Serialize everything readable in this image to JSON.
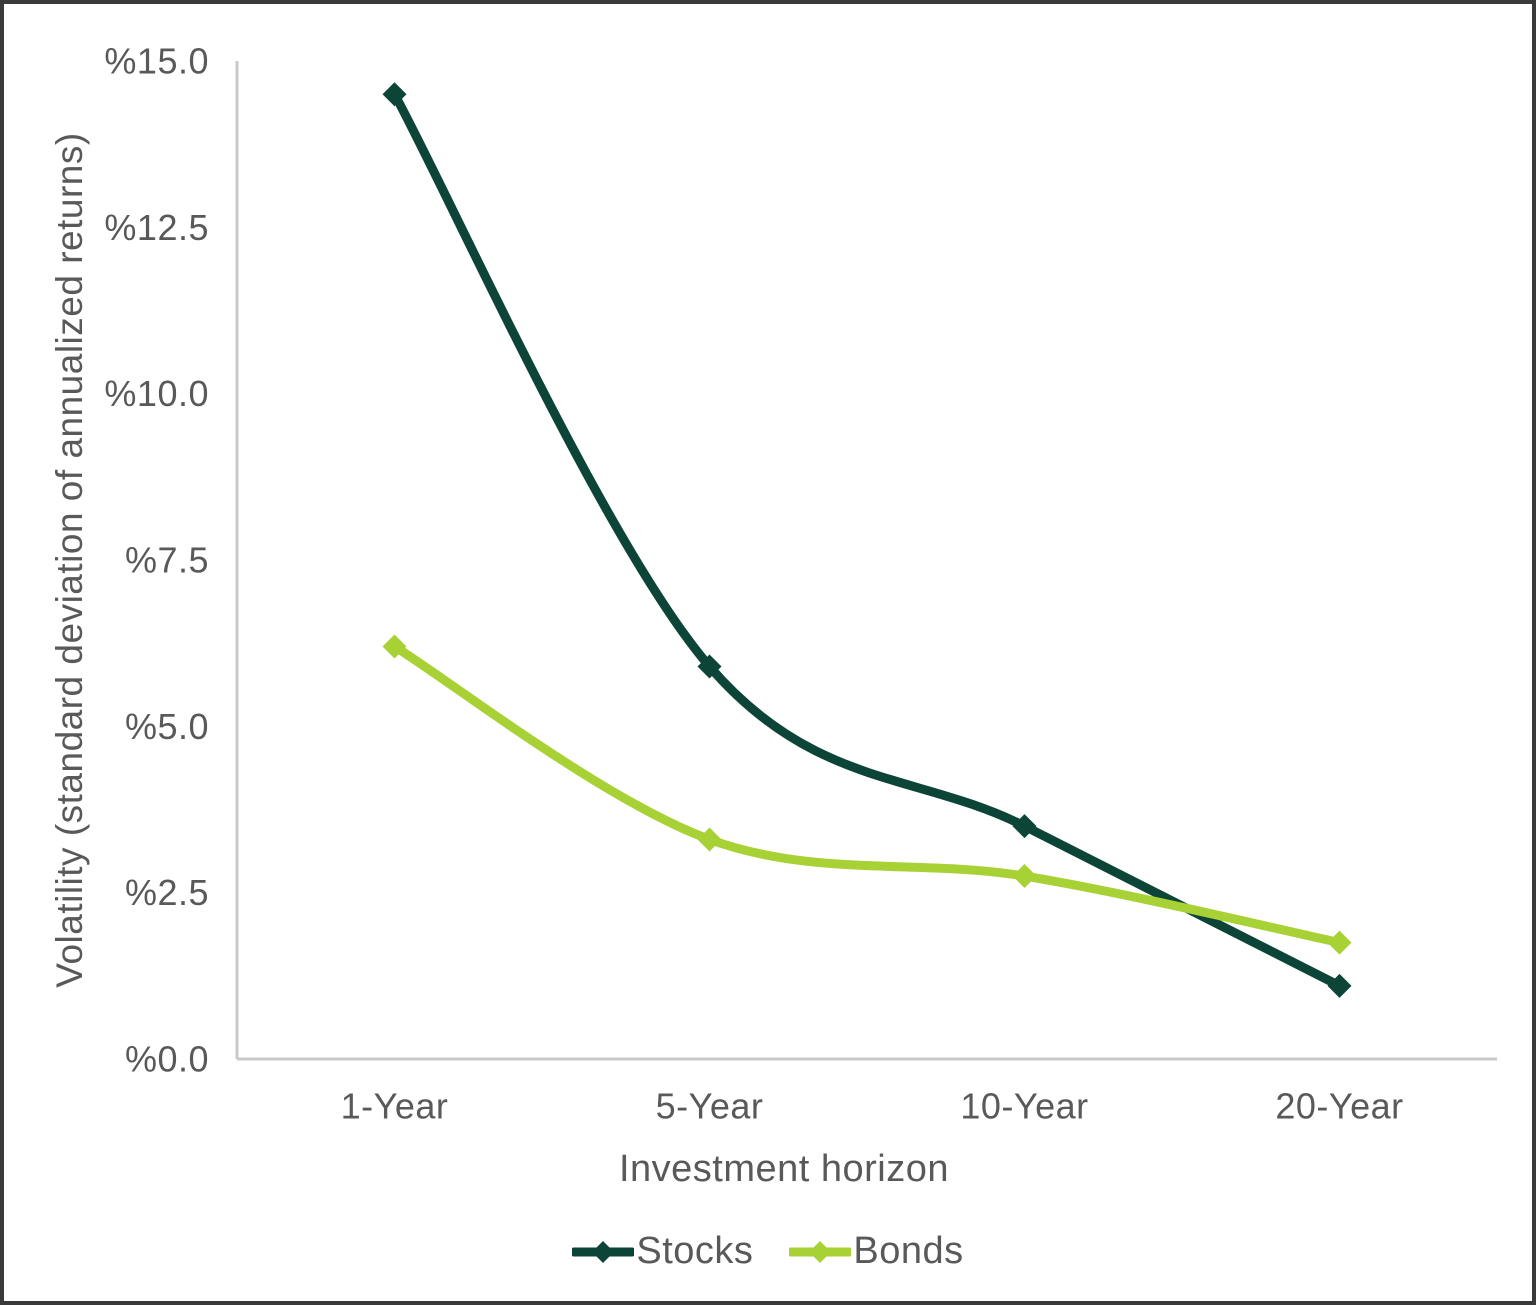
{
  "frame": {
    "border_color": "#3a3a3a",
    "background_color": "#ffffff"
  },
  "chart_data": {
    "type": "line",
    "title": "",
    "categories": [
      "1-Year",
      "5-Year",
      "10-Year",
      "20-Year"
    ],
    "series": [
      {
        "name": "Stocks",
        "color": "#0c4537",
        "marker": "diamond",
        "values": [
          14.5,
          5.9,
          3.5,
          1.1
        ]
      },
      {
        "name": "Bonds",
        "color": "#a8d135",
        "marker": "diamond",
        "values": [
          6.2,
          3.3,
          2.75,
          1.75
        ]
      }
    ],
    "xlabel": "Investment horizon",
    "ylabel": "Volatility (standard deviation of annualized returns)",
    "ylim": [
      0,
      15
    ],
    "ytick_step": 2.5,
    "ytick_labels": [
      "%0.0",
      "%2.5",
      "%5.0",
      "%7.5",
      "%10.0",
      "%12.5",
      "%15.0"
    ],
    "grid": false,
    "line_style": "smooth",
    "legend_position": "bottom-center",
    "axis_color": "#c9c9c9",
    "text_color": "#595959"
  }
}
